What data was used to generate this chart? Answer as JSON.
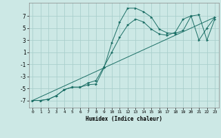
{
  "xlabel": "Humidex (Indice chaleur)",
  "background_color": "#cce8e5",
  "grid_color": "#aacfcc",
  "line_color": "#1a6e65",
  "xlim": [
    -0.5,
    23.5
  ],
  "ylim": [
    -8.2,
    9.2
  ],
  "yticks": [
    -7,
    -5,
    -3,
    -1,
    1,
    3,
    5,
    7
  ],
  "xticks": [
    0,
    1,
    2,
    3,
    4,
    5,
    6,
    7,
    8,
    9,
    10,
    11,
    12,
    13,
    14,
    15,
    16,
    17,
    18,
    19,
    20,
    21,
    22,
    23
  ],
  "line1_x": [
    0,
    1,
    2,
    3,
    4,
    5,
    6,
    7,
    8,
    9,
    10,
    11,
    12,
    13,
    14,
    15,
    16,
    17,
    18,
    19,
    20,
    21,
    22,
    23
  ],
  "line1_y": [
    -7,
    -7,
    -6.8,
    -6.2,
    -5.2,
    -4.8,
    -4.8,
    -4.4,
    -4.3,
    -1.6,
    2.6,
    6.0,
    8.3,
    8.3,
    7.7,
    6.8,
    4.8,
    4.2,
    4.1,
    4.6,
    7.0,
    7.2,
    3.0,
    6.5
  ],
  "line2_x": [
    0,
    1,
    2,
    3,
    4,
    5,
    6,
    7,
    8,
    9,
    10,
    11,
    12,
    13,
    14,
    15,
    16,
    17,
    18,
    19,
    20,
    21,
    22,
    23
  ],
  "line2_y": [
    -7,
    -7,
    -6.8,
    -6.2,
    -5.2,
    -4.8,
    -4.8,
    -4.1,
    -3.7,
    -1.4,
    1.0,
    3.5,
    5.5,
    6.5,
    6.0,
    4.8,
    4.0,
    3.8,
    4.3,
    6.5,
    7.0,
    3.0,
    5.0,
    6.8
  ],
  "line3_x": [
    0,
    23
  ],
  "line3_y": [
    -7.0,
    6.8
  ]
}
